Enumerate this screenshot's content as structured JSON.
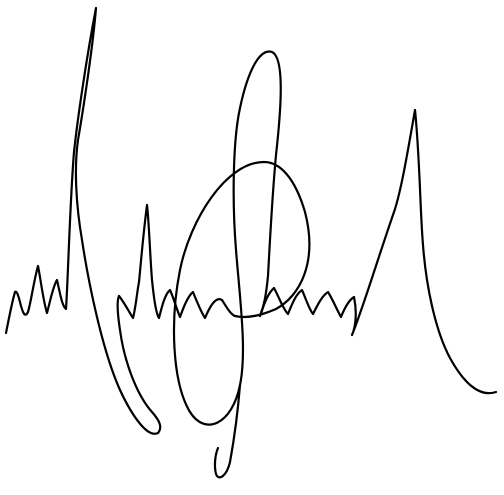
{
  "signature": {
    "kind": "handwritten-signature",
    "ink_color": "#000000",
    "background_color": "#ffffff"
  }
}
